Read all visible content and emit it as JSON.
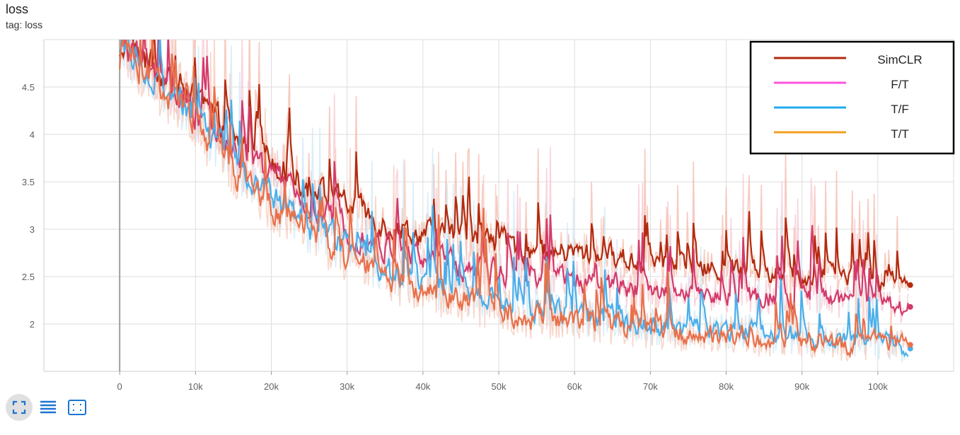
{
  "card": {
    "title": "loss",
    "tag": "tag: loss"
  },
  "toolbar": {
    "buttons": [
      {
        "name": "fit-domain",
        "icon": "fullscreen-fit-icon"
      },
      {
        "name": "toggle-log",
        "icon": "list-lines-icon"
      },
      {
        "name": "expand",
        "icon": "expand-frame-icon"
      }
    ],
    "accent": "#1976d2"
  },
  "chart_data": {
    "type": "line",
    "title": "loss",
    "xlabel": "",
    "ylabel": "",
    "xlim": [
      -10000,
      110000
    ],
    "ylim": [
      1.5,
      5.0
    ],
    "xticks": [
      0,
      10000,
      20000,
      30000,
      40000,
      50000,
      60000,
      70000,
      80000,
      90000,
      100000
    ],
    "xtick_labels": [
      "0",
      "10k",
      "20k",
      "30k",
      "40k",
      "50k",
      "60k",
      "70k",
      "80k",
      "90k",
      "100k"
    ],
    "yticks": [
      2,
      2.5,
      3,
      3.5,
      4,
      4.5
    ],
    "ytick_labels": [
      "2",
      "2.5",
      "3",
      "3.5",
      "4",
      "4.5"
    ],
    "grid": true,
    "legend_position": "top-right",
    "legend": [
      {
        "name": "SimCLR",
        "color": "#b32a0e"
      },
      {
        "name": "F/T",
        "color": "#ff55e0"
      },
      {
        "name": "T/F",
        "color": "#22aaee"
      },
      {
        "name": "T/T",
        "color": "#f0a020"
      }
    ],
    "x": [
      0,
      5000,
      10000,
      15000,
      20000,
      25000,
      30000,
      35000,
      40000,
      45000,
      50000,
      55000,
      60000,
      65000,
      70000,
      75000,
      80000,
      85000,
      90000,
      95000,
      100000,
      104000
    ],
    "series": [
      {
        "name": "SimCLR",
        "color": "#b32a0e",
        "raw_color": "#f4b8aa",
        "values": [
          5.0,
          4.65,
          4.35,
          3.95,
          3.75,
          3.4,
          3.25,
          3.05,
          2.95,
          2.9,
          2.85,
          2.75,
          2.75,
          2.7,
          2.65,
          2.6,
          2.55,
          2.55,
          2.5,
          2.5,
          2.45,
          2.41
        ]
      },
      {
        "name": "F/T",
        "color": "#d33a6a",
        "raw_color": "#f7c6d0",
        "values": [
          4.95,
          4.55,
          4.2,
          3.8,
          3.55,
          3.2,
          3.0,
          2.8,
          2.7,
          2.6,
          2.55,
          2.5,
          2.45,
          2.4,
          2.35,
          2.35,
          2.3,
          2.3,
          2.25,
          2.25,
          2.2,
          2.18
        ]
      },
      {
        "name": "T/F",
        "color": "#4aaeea",
        "raw_color": "#cfe8f6",
        "values": [
          4.9,
          4.5,
          4.15,
          3.7,
          3.35,
          3.0,
          2.8,
          2.55,
          2.45,
          2.3,
          2.2,
          2.15,
          2.1,
          2.05,
          2.0,
          1.95,
          1.95,
          1.9,
          1.85,
          1.85,
          1.8,
          1.74
        ]
      },
      {
        "name": "T/T",
        "color": "#e8704a",
        "raw_color": "#f6c8b8",
        "values": [
          4.95,
          4.5,
          4.1,
          3.6,
          3.25,
          2.95,
          2.7,
          2.5,
          2.35,
          2.25,
          2.15,
          2.05,
          2.05,
          2.0,
          1.95,
          1.9,
          1.9,
          1.85,
          1.85,
          1.8,
          1.8,
          1.78
        ]
      }
    ]
  }
}
